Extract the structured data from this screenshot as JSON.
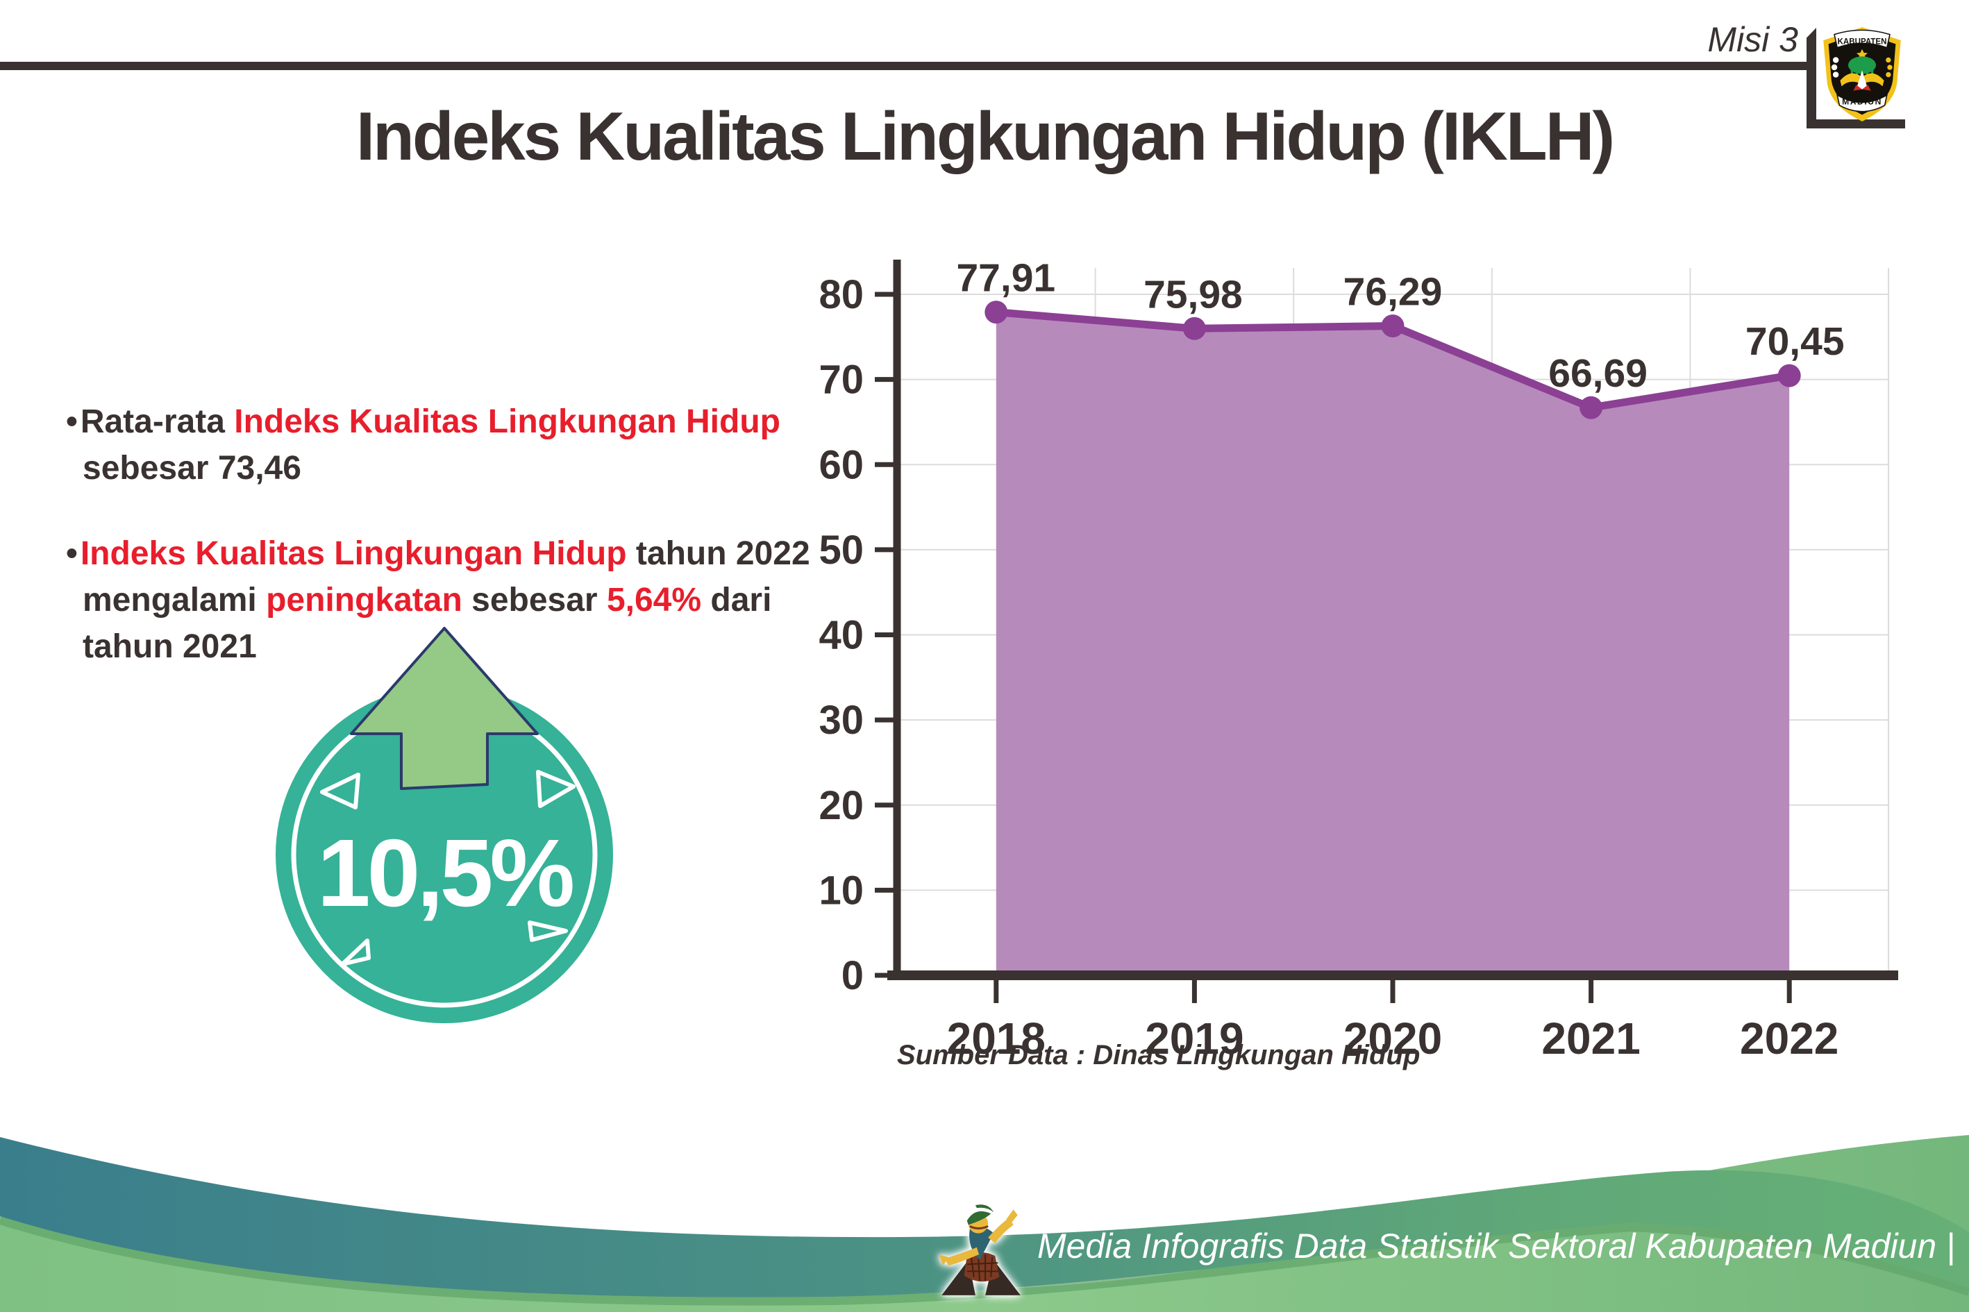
{
  "header": {
    "misi_label": "Misi 3",
    "title": "Indeks Kualitas Lingkungan Hidup (IKLH)"
  },
  "logo": {
    "top_text": "KABUPATEN",
    "bottom_text": "MADIUN"
  },
  "bullets": [
    {
      "lines": [
        [
          {
            "text": "Rata-rata ",
            "color": "dark"
          },
          {
            "text": "Indeks Kualitas Lingkungan Hidup",
            "color": "red"
          }
        ],
        [
          {
            "text": "sebesar 73,46",
            "color": "dark"
          }
        ]
      ]
    },
    {
      "lines": [
        [
          {
            "text": "Indeks Kualitas Lingkungan Hidup",
            "color": "red"
          },
          {
            "text": " tahun 2022",
            "color": "dark"
          }
        ],
        [
          {
            "text": "mengalami ",
            "color": "dark"
          },
          {
            "text": "peningkatan",
            "color": "red"
          },
          {
            "text": " sebesar ",
            "color": "dark"
          },
          {
            "text": "5,64%",
            "color": "red"
          },
          {
            "text": " dari",
            "color": "dark"
          }
        ],
        [
          {
            "text": "tahun 2021",
            "color": "dark"
          }
        ]
      ]
    }
  ],
  "badge": {
    "value": "10,5%"
  },
  "chart_data": {
    "type": "area",
    "categories": [
      "2018",
      "2019",
      "2020",
      "2021",
      "2022"
    ],
    "values": [
      77.91,
      75.98,
      76.29,
      66.69,
      70.45
    ],
    "value_labels": [
      "77,91",
      "75,98",
      "76,29",
      "66,69",
      "70,45"
    ],
    "title": "",
    "xlabel": "",
    "ylabel": "",
    "ylim": [
      0,
      80
    ],
    "ytick_step": 10,
    "grid": true,
    "legend": "none",
    "line_color": "#8b4094",
    "fill_color": "#b78abc",
    "source_note": "Sumber Data : Dinas Lingkungan Hidup"
  },
  "footer": {
    "credit_text": "Media Infografis Data Statistik Sektoral Kabupaten Madiun |"
  },
  "colors": {
    "dark_text": "#3a3231",
    "accent_red": "#e81e2c",
    "badge_teal": "#35b297",
    "arrow_green": "#94ca85",
    "arrow_outline": "#2b3a6b",
    "grid_gray": "#dcdcdc",
    "chart_line_purple": "#8b4094",
    "chart_fill_purple": "#b78abc",
    "footer_teal": "#3a7e8c",
    "footer_green": "#8cc98b"
  }
}
